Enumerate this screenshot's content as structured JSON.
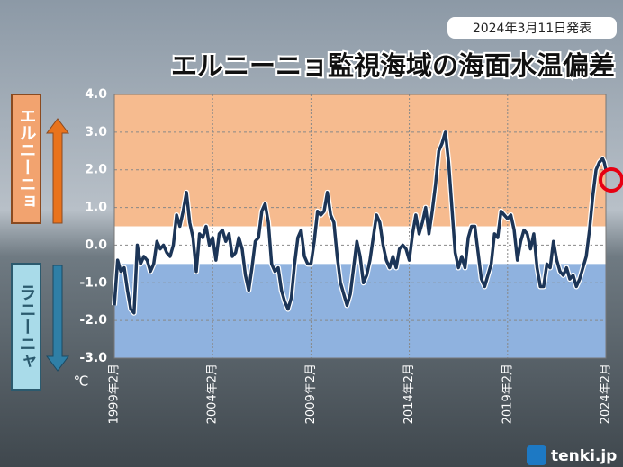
{
  "chart_data": {
    "type": "line",
    "title": "エルニーニョ監視海域の海面水温偏差",
    "subtitle": "2024年3月11日発表",
    "y_unit": "℃",
    "el_nino_label": "エルニーニョ",
    "la_nina_label": "ラニーニャ",
    "logo": "tenki.jp",
    "bands": [
      {
        "from": 0.5,
        "to": 4,
        "color": "#f6bb8f"
      },
      {
        "from": -3,
        "to": -0.5,
        "color": "#8fb2df"
      }
    ],
    "neutral_color": "#ffffff",
    "grid": true,
    "xlim": [
      "1999-02",
      "2024-02"
    ],
    "xticks": [
      {
        "value": "1999-02",
        "label": "1999年2月"
      },
      {
        "value": "2004-02",
        "label": "2004年2月"
      },
      {
        "value": "2009-02",
        "label": "2009年2月"
      },
      {
        "value": "2014-02",
        "label": "2014年2月"
      },
      {
        "value": "2019-02",
        "label": "2019年2月"
      },
      {
        "value": "2024-02",
        "label": "2024年2月"
      }
    ],
    "ylim": [
      -3,
      4
    ],
    "yticks": [
      {
        "value": 4,
        "label": "4.0"
      },
      {
        "value": 3,
        "label": "3.0"
      },
      {
        "value": 2,
        "label": "2.0"
      },
      {
        "value": 1,
        "label": "1.0"
      },
      {
        "value": 0,
        "label": "0.0"
      },
      {
        "value": -1,
        "label": "-1.0"
      },
      {
        "value": -2,
        "label": "-2.0"
      },
      {
        "value": -3,
        "label": "-3.0"
      }
    ],
    "x": [
      "1999-02",
      "1999-04",
      "1999-06",
      "1999-08",
      "1999-10",
      "1999-12",
      "2000-02",
      "2000-04",
      "2000-06",
      "2000-08",
      "2000-10",
      "2000-12",
      "2001-02",
      "2001-04",
      "2001-06",
      "2001-08",
      "2001-10",
      "2001-12",
      "2002-02",
      "2002-04",
      "2002-06",
      "2002-08",
      "2002-10",
      "2002-12",
      "2003-02",
      "2003-04",
      "2003-06",
      "2003-08",
      "2003-10",
      "2003-12",
      "2004-02",
      "2004-04",
      "2004-06",
      "2004-08",
      "2004-10",
      "2004-12",
      "2005-02",
      "2005-04",
      "2005-06",
      "2005-08",
      "2005-10",
      "2005-12",
      "2006-02",
      "2006-04",
      "2006-06",
      "2006-08",
      "2006-10",
      "2006-12",
      "2007-02",
      "2007-04",
      "2007-06",
      "2007-08",
      "2007-10",
      "2007-12",
      "2008-02",
      "2008-04",
      "2008-06",
      "2008-08",
      "2008-10",
      "2008-12",
      "2009-02",
      "2009-04",
      "2009-06",
      "2009-08",
      "2009-10",
      "2009-12",
      "2010-02",
      "2010-04",
      "2010-06",
      "2010-08",
      "2010-10",
      "2010-12",
      "2011-02",
      "2011-04",
      "2011-06",
      "2011-08",
      "2011-10",
      "2011-12",
      "2012-02",
      "2012-04",
      "2012-06",
      "2012-08",
      "2012-10",
      "2012-12",
      "2013-02",
      "2013-04",
      "2013-06",
      "2013-08",
      "2013-10",
      "2013-12",
      "2014-02",
      "2014-04",
      "2014-06",
      "2014-08",
      "2014-10",
      "2014-12",
      "2015-02",
      "2015-04",
      "2015-06",
      "2015-08",
      "2015-10",
      "2015-12",
      "2016-02",
      "2016-04",
      "2016-06",
      "2016-08",
      "2016-10",
      "2016-12",
      "2017-02",
      "2017-04",
      "2017-06",
      "2017-08",
      "2017-10",
      "2017-12",
      "2018-02",
      "2018-04",
      "2018-06",
      "2018-08",
      "2018-10",
      "2018-12",
      "2019-02",
      "2019-04",
      "2019-06",
      "2019-08",
      "2019-10",
      "2019-12",
      "2020-02",
      "2020-04",
      "2020-06",
      "2020-08",
      "2020-10",
      "2020-12",
      "2021-02",
      "2021-04",
      "2021-06",
      "2021-08",
      "2021-10",
      "2021-12",
      "2022-02",
      "2022-04",
      "2022-06",
      "2022-08",
      "2022-10",
      "2022-12",
      "2023-02",
      "2023-04",
      "2023-06",
      "2023-08",
      "2023-10",
      "2023-12",
      "2024-01",
      "2024-02"
    ],
    "series": [
      {
        "color": "#1c3557",
        "values": [
          -1.6,
          -0.4,
          -0.7,
          -0.6,
          -1.2,
          -1.7,
          -1.8,
          0.0,
          -0.5,
          -0.3,
          -0.4,
          -0.7,
          -0.5,
          0.1,
          -0.1,
          0.0,
          -0.2,
          -0.3,
          0.0,
          0.8,
          0.5,
          0.9,
          1.4,
          0.6,
          0.2,
          -0.7,
          0.3,
          0.2,
          0.5,
          0.0,
          0.2,
          -0.4,
          0.3,
          0.4,
          0.1,
          0.3,
          -0.3,
          -0.2,
          0.2,
          -0.1,
          -0.8,
          -1.2,
          -0.6,
          0.1,
          0.2,
          0.9,
          1.1,
          0.6,
          -0.5,
          -0.7,
          -0.6,
          -1.2,
          -1.5,
          -1.7,
          -1.4,
          -0.5,
          0.2,
          0.4,
          -0.3,
          -0.5,
          -0.5,
          0.1,
          0.9,
          0.8,
          0.9,
          1.4,
          0.8,
          0.6,
          -0.3,
          -1.0,
          -1.3,
          -1.6,
          -1.3,
          -0.6,
          0.1,
          -0.3,
          -1.0,
          -0.8,
          -0.4,
          0.2,
          0.8,
          0.6,
          0.0,
          -0.4,
          -0.6,
          -0.3,
          -0.6,
          -0.1,
          0.0,
          -0.1,
          -0.4,
          0.3,
          0.8,
          0.3,
          0.6,
          1.0,
          0.3,
          0.9,
          1.6,
          2.5,
          2.7,
          3.0,
          2.2,
          1.0,
          -0.2,
          -0.6,
          -0.3,
          -0.6,
          0.2,
          0.5,
          0.5,
          -0.2,
          -0.9,
          -1.1,
          -0.8,
          -0.5,
          0.3,
          0.2,
          0.9,
          0.8,
          0.7,
          0.8,
          0.4,
          -0.4,
          0.1,
          0.4,
          0.3,
          -0.1,
          0.3,
          -0.6,
          -1.1,
          -1.1,
          -0.5,
          -0.6,
          0.1,
          -0.4,
          -0.7,
          -0.8,
          -0.6,
          -0.9,
          -0.8,
          -1.1,
          -0.9,
          -0.6,
          -0.3,
          0.4,
          1.3,
          2.0,
          2.2,
          2.3,
          2.2,
          2.0
        ]
      }
    ]
  }
}
